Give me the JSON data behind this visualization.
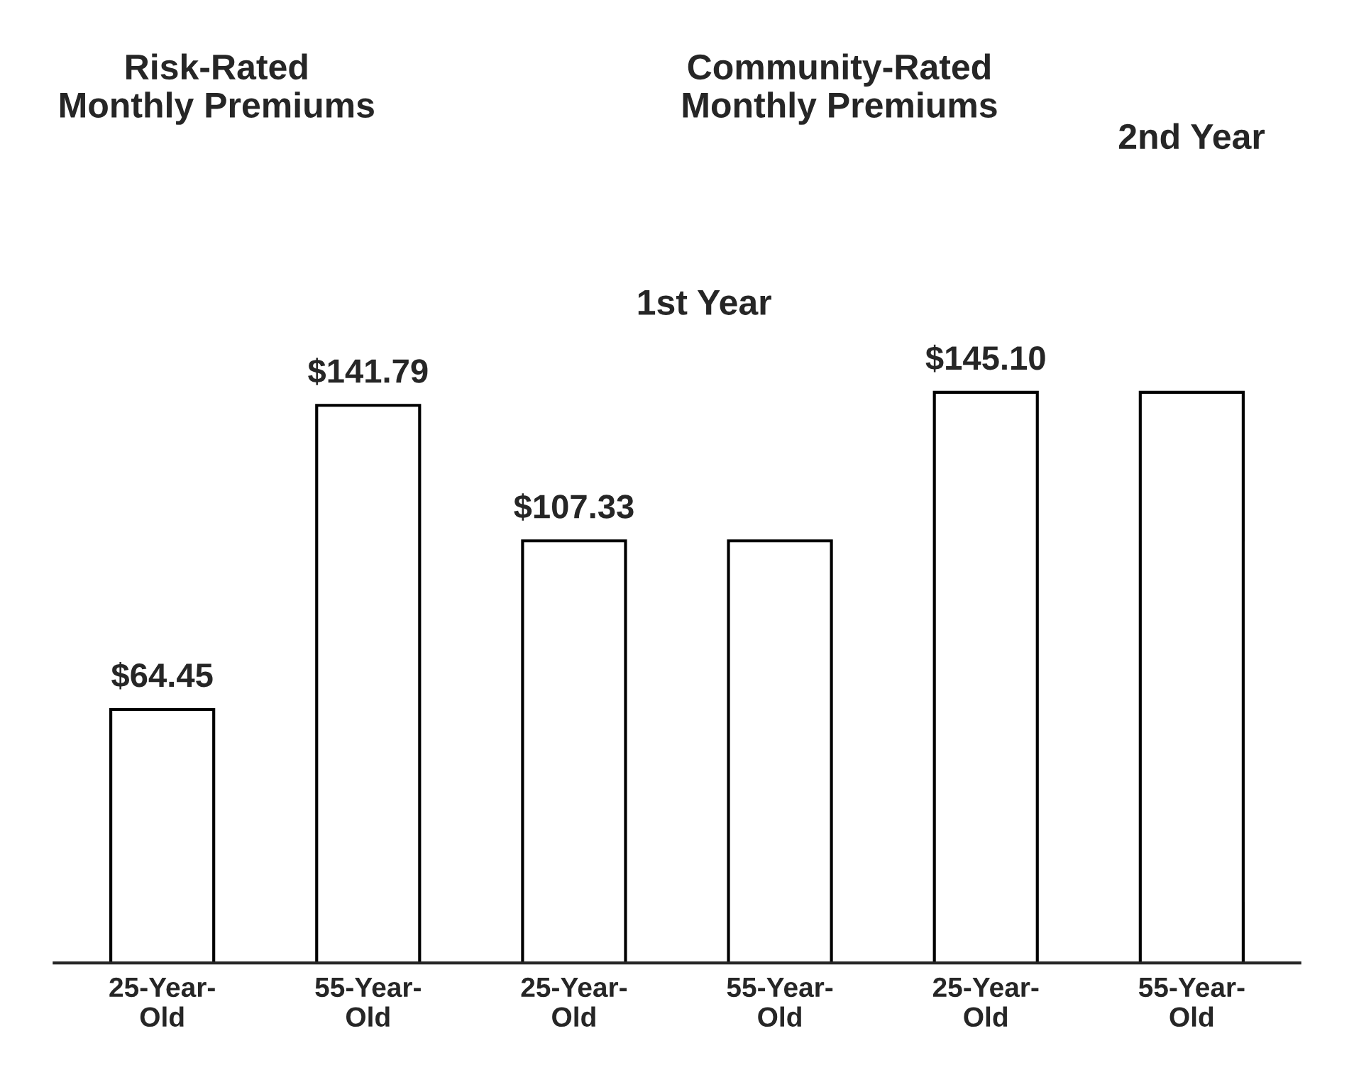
{
  "chart_data": {
    "type": "bar",
    "categories": [
      "25-Year-\nOld",
      "55-Year-\nOld",
      "25-Year-\nOld",
      "55-Year-\nOld",
      "25-Year-\nOld",
      "55-Year-\nOld"
    ],
    "values": [
      64.45,
      141.79,
      107.33,
      107.33,
      145.1,
      145.1
    ],
    "value_labels": [
      "$64.45",
      "$141.79",
      "$107.33",
      null,
      "$145.10",
      null
    ],
    "color": "#ffffff",
    "annotations": [
      "Risk-Rated\nMonthly Premiums",
      "Community-Rated\nMonthly Premiums",
      "1st Year",
      "2nd Year"
    ],
    "grid": false,
    "legend": false
  }
}
